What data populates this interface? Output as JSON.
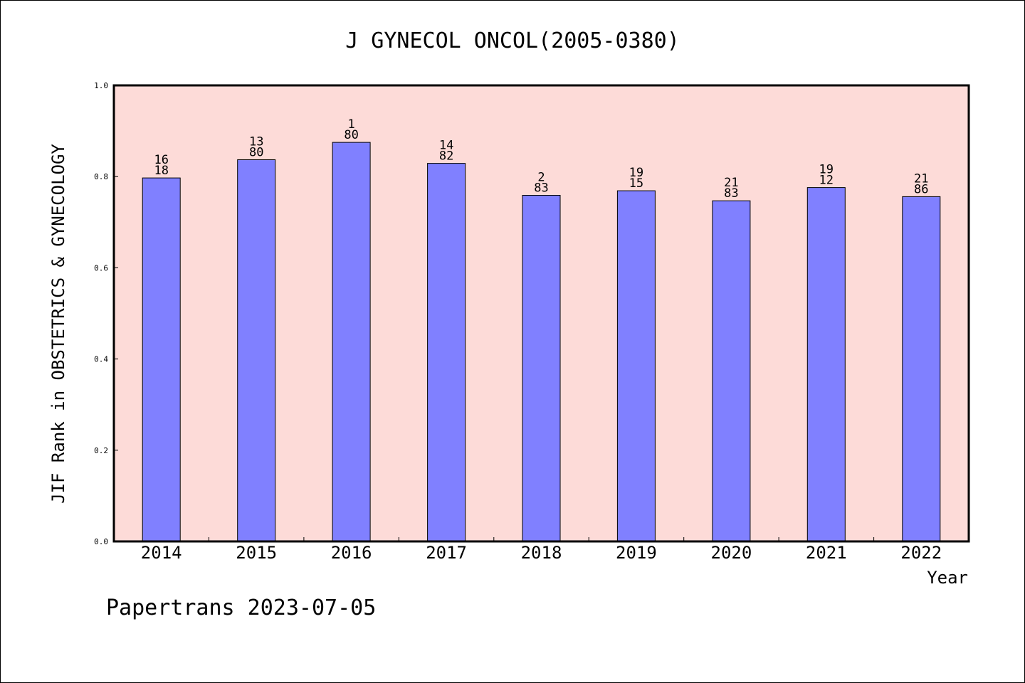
{
  "chart_data": {
    "type": "bar",
    "title": "J GYNECOL ONCOL(2005-0380)",
    "xlabel": "Year",
    "ylabel": "JIF Rank in OBSTETRICS & GYNECOLOGY",
    "ylim": [
      0,
      1.0
    ],
    "yticks": [
      "0.0",
      "0.2",
      "0.4",
      "0.6",
      "0.8",
      "1.0"
    ],
    "categories": [
      "2014",
      "2015",
      "2016",
      "2017",
      "2018",
      "2019",
      "2020",
      "2021",
      "2022"
    ],
    "values": [
      0.797,
      0.837,
      0.875,
      0.829,
      0.759,
      0.769,
      0.747,
      0.776,
      0.756
    ],
    "bar_labels": [
      [
        "16",
        "18"
      ],
      [
        "13",
        "80"
      ],
      [
        "1",
        "80"
      ],
      [
        "14",
        "82"
      ],
      [
        "2",
        "83"
      ],
      [
        "19",
        "15"
      ],
      [
        "21",
        "83"
      ],
      [
        "19",
        "12"
      ],
      [
        "21",
        "86"
      ]
    ],
    "grid": false,
    "colors": {
      "bar": "#8080ff",
      "plot_background": "#fddbd8"
    }
  },
  "footer": "Papertrans 2023-07-05"
}
